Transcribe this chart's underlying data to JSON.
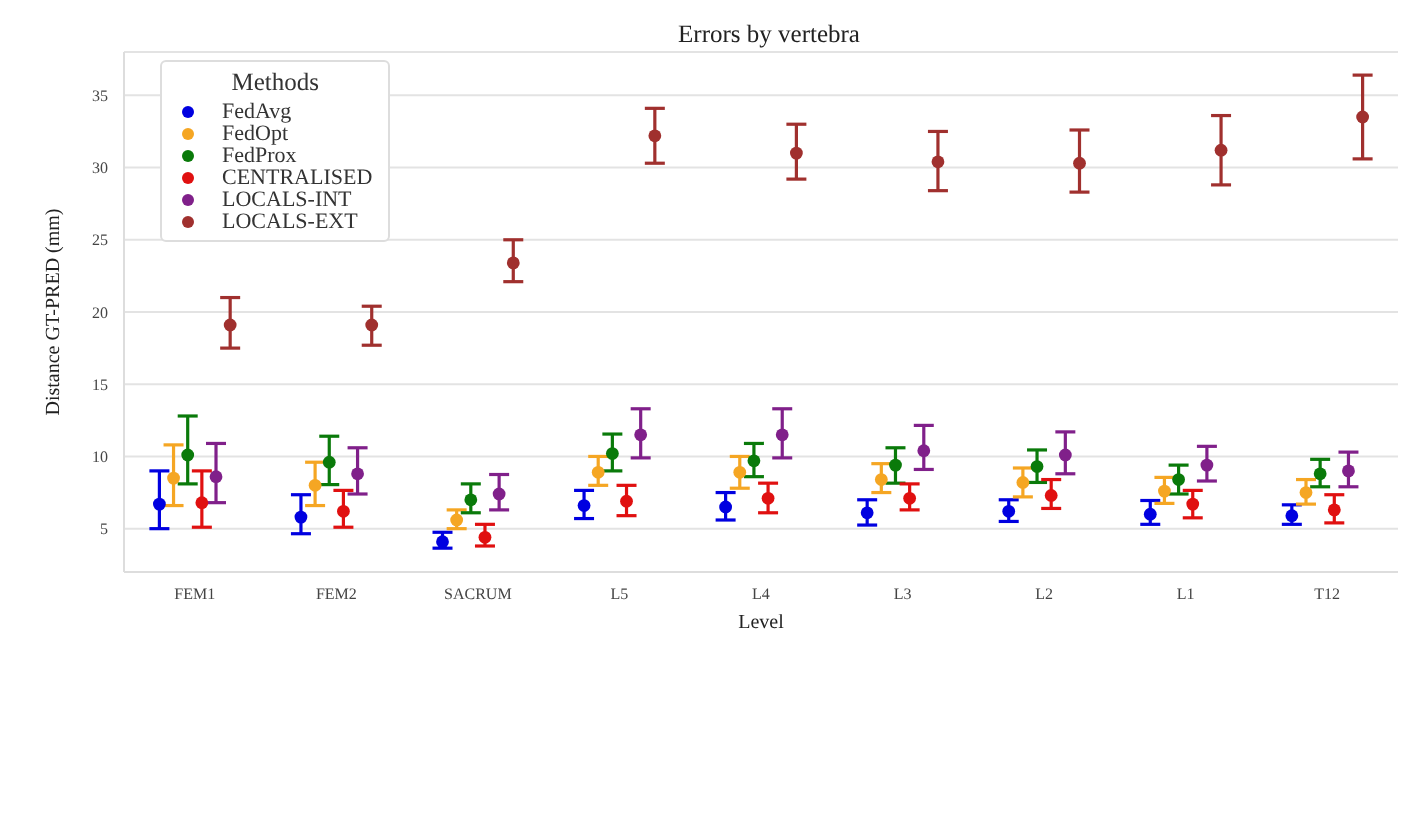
{
  "chart_data": {
    "type": "scatter",
    "title": "Errors by vertebra",
    "xlabel": "Level",
    "ylabel": "Distance GT-PRED (mm)",
    "legend_title": "Methods",
    "categories": [
      "FEM1",
      "FEM2",
      "SACRUM",
      "L5",
      "L4",
      "L3",
      "L2",
      "L1",
      "T12"
    ],
    "series": [
      {
        "name": "FedAvg",
        "color": "#0000e0",
        "values": [
          6.7,
          5.8,
          4.1,
          6.6,
          6.5,
          6.1,
          6.2,
          6.0,
          5.9
        ],
        "errors": [
          [
            5.0,
            9.0
          ],
          [
            4.65,
            7.35
          ],
          [
            3.65,
            4.75
          ],
          [
            5.7,
            7.65
          ],
          [
            5.6,
            7.5
          ],
          [
            5.25,
            7.0
          ],
          [
            5.5,
            7.0
          ],
          [
            5.3,
            6.95
          ],
          [
            5.3,
            6.65
          ]
        ]
      },
      {
        "name": "FedOpt",
        "color": "#f5a623",
        "values": [
          8.5,
          8.0,
          5.6,
          8.9,
          8.9,
          8.4,
          8.2,
          7.6,
          7.5
        ],
        "errors": [
          [
            6.6,
            10.8
          ],
          [
            6.6,
            9.6
          ],
          [
            5.0,
            6.3
          ],
          [
            8.0,
            10.0
          ],
          [
            7.8,
            10.0
          ],
          [
            7.5,
            9.5
          ],
          [
            7.2,
            9.2
          ],
          [
            6.75,
            8.55
          ],
          [
            6.7,
            8.4
          ]
        ]
      },
      {
        "name": "FedProx",
        "color": "#0a7a0a",
        "values": [
          10.1,
          9.6,
          7.0,
          10.2,
          9.7,
          9.4,
          9.3,
          8.4,
          8.8
        ],
        "errors": [
          [
            8.1,
            12.8
          ],
          [
            8.05,
            11.4
          ],
          [
            6.1,
            8.1
          ],
          [
            9.0,
            11.55
          ],
          [
            8.6,
            10.9
          ],
          [
            8.15,
            10.6
          ],
          [
            8.2,
            10.45
          ],
          [
            7.4,
            9.4
          ],
          [
            7.9,
            9.8
          ]
        ]
      },
      {
        "name": "CENTRALISED",
        "color": "#e01010",
        "values": [
          6.8,
          6.2,
          4.4,
          6.9,
          7.1,
          7.1,
          7.3,
          6.7,
          6.3
        ],
        "errors": [
          [
            5.1,
            9.0
          ],
          [
            5.1,
            7.65
          ],
          [
            3.8,
            5.3
          ],
          [
            5.9,
            8.0
          ],
          [
            6.1,
            8.15
          ],
          [
            6.3,
            8.1
          ],
          [
            6.4,
            8.4
          ],
          [
            5.75,
            7.65
          ],
          [
            5.4,
            7.35
          ]
        ]
      },
      {
        "name": "LOCALS-INT",
        "color": "#80208a",
        "values": [
          8.6,
          8.8,
          7.4,
          11.5,
          11.5,
          10.4,
          10.1,
          9.4,
          9.0
        ],
        "errors": [
          [
            6.8,
            10.9
          ],
          [
            7.4,
            10.6
          ],
          [
            6.3,
            8.75
          ],
          [
            9.9,
            13.3
          ],
          [
            9.9,
            13.3
          ],
          [
            9.1,
            12.15
          ],
          [
            8.8,
            11.7
          ],
          [
            8.3,
            10.7
          ],
          [
            7.9,
            10.3
          ]
        ]
      },
      {
        "name": "LOCALS-EXT",
        "color": "#a0302e",
        "values": [
          19.1,
          19.1,
          23.4,
          32.2,
          31.0,
          30.4,
          30.3,
          31.2,
          33.5
        ],
        "errors": [
          [
            17.5,
            21.0
          ],
          [
            17.7,
            20.4
          ],
          [
            22.1,
            25.0
          ],
          [
            30.3,
            34.1
          ],
          [
            29.2,
            33.0
          ],
          [
            28.4,
            32.5
          ],
          [
            28.3,
            32.6
          ],
          [
            28.8,
            33.6
          ],
          [
            30.6,
            36.4
          ]
        ]
      }
    ],
    "ylim": [
      2,
      38
    ],
    "yticks": [
      5,
      10,
      15,
      20,
      25,
      30,
      35
    ],
    "grid": "y",
    "legend": "top left",
    "marker": "circle"
  }
}
